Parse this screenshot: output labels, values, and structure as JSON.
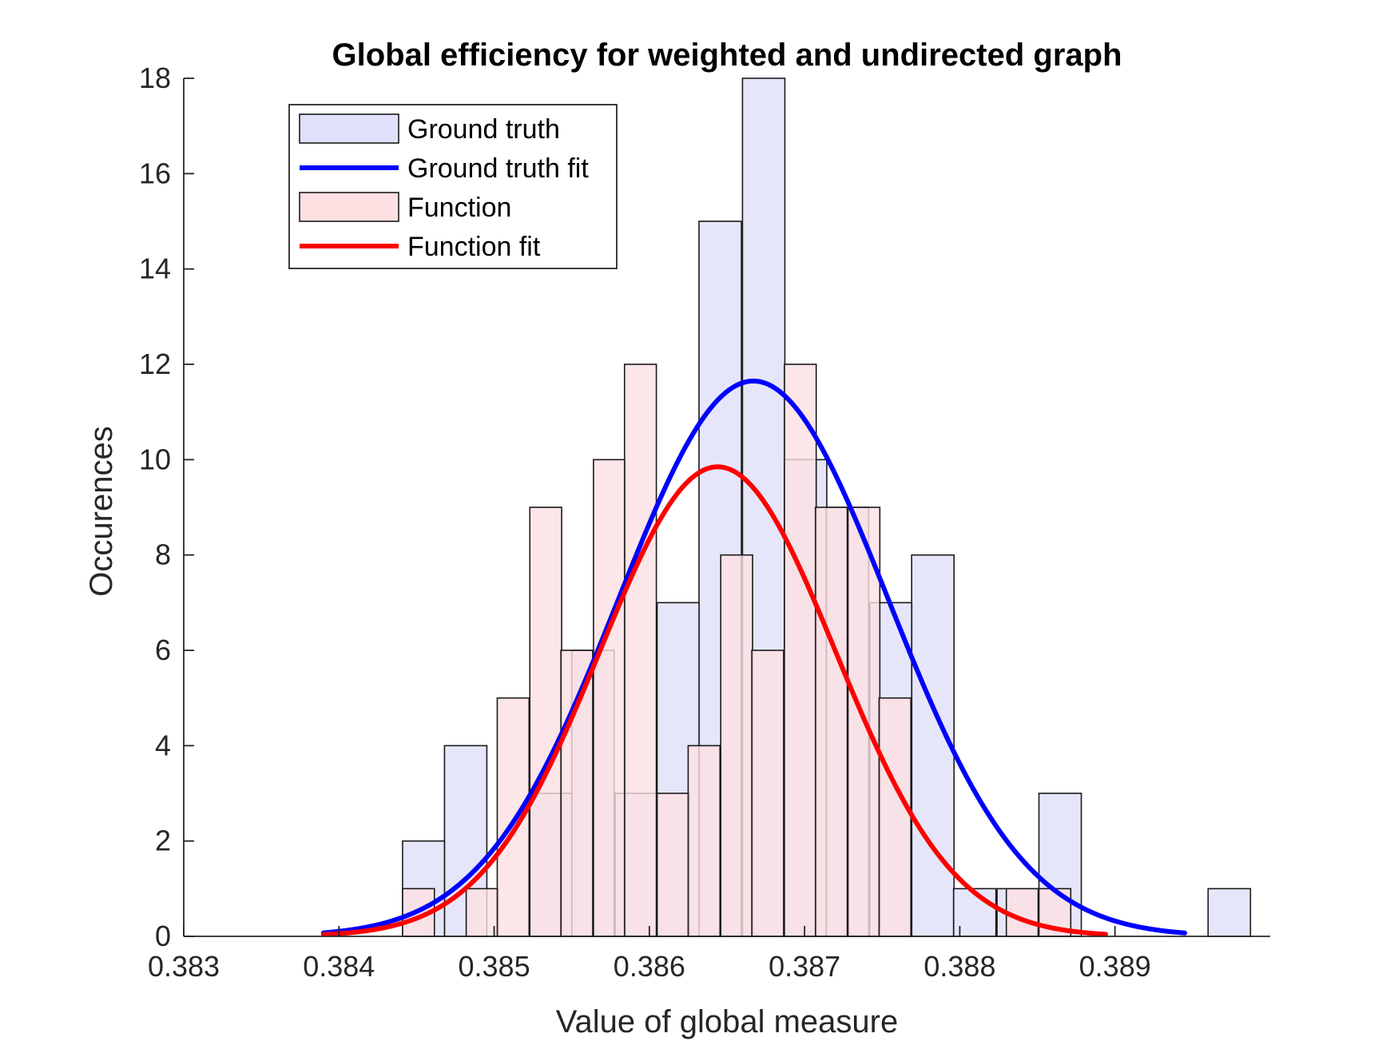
{
  "chart_data": {
    "type": "bar",
    "title": "Global efficiency for weighted and undirected graph",
    "xlabel": "Value of global measure",
    "ylabel": "Occurences",
    "xlim": [
      0.383,
      0.39
    ],
    "ylim": [
      0,
      18
    ],
    "xticks": [
      "0.383",
      "0.384",
      "0.385",
      "0.386",
      "0.387",
      "0.388",
      "0.389"
    ],
    "yticks": [
      "0",
      "2",
      "4",
      "6",
      "8",
      "10",
      "12",
      "14",
      "16",
      "18"
    ],
    "grid": false,
    "legend_position": "top-left",
    "histograms": [
      {
        "name": "Ground truth",
        "color": "#e0e0fa",
        "bin_width": 0.000273,
        "bin_starts": [
          0.38441,
          0.38468,
          0.38496,
          0.38523,
          0.3855,
          0.38578,
          0.38605,
          0.38632,
          0.3866,
          0.38687,
          0.38714,
          0.38742,
          0.38769,
          0.38796,
          0.38824,
          0.38851,
          0.38878,
          0.38906,
          0.38933,
          0.3896
        ],
        "counts": [
          2,
          4,
          0,
          3,
          6,
          3,
          7,
          15,
          18,
          10,
          9,
          7,
          8,
          1,
          1,
          3,
          0,
          0,
          0,
          1
        ]
      },
      {
        "name": "Function",
        "color": "#fde0e2",
        "bin_width": 0.000205,
        "bin_starts": [
          0.38441,
          0.38461,
          0.38482,
          0.38502,
          0.38523,
          0.38543,
          0.38564,
          0.38584,
          0.38605,
          0.38625,
          0.38646,
          0.38666,
          0.38687,
          0.38707,
          0.38728,
          0.38748,
          0.38769,
          0.38789,
          0.3881,
          0.3883,
          0.38851
        ],
        "counts": [
          1,
          0,
          1,
          5,
          9,
          6,
          10,
          12,
          3,
          4,
          8,
          6,
          12,
          9,
          9,
          5,
          0,
          0,
          0,
          1,
          1
        ]
      }
    ],
    "series": [
      {
        "name": "Ground truth fit",
        "type": "normal-fit",
        "color": "#0000ff",
        "mean": 0.38667,
        "sd": 0.00087,
        "peak": 11.65,
        "x_range": [
          0.3839,
          0.38945
        ]
      },
      {
        "name": "Function fit",
        "type": "normal-fit",
        "color": "#ff0000",
        "mean": 0.38644,
        "sd": 0.00076,
        "peak": 9.85,
        "x_range": [
          0.3839,
          0.38894
        ]
      }
    ],
    "legend": [
      {
        "label": "Ground truth",
        "kind": "patch",
        "color": "#e0e0fa"
      },
      {
        "label": "Ground truth fit",
        "kind": "line",
        "color": "#0000ff"
      },
      {
        "label": "Function",
        "kind": "patch",
        "color": "#fde0e2"
      },
      {
        "label": "Function fit",
        "kind": "line",
        "color": "#ff0000"
      }
    ]
  }
}
